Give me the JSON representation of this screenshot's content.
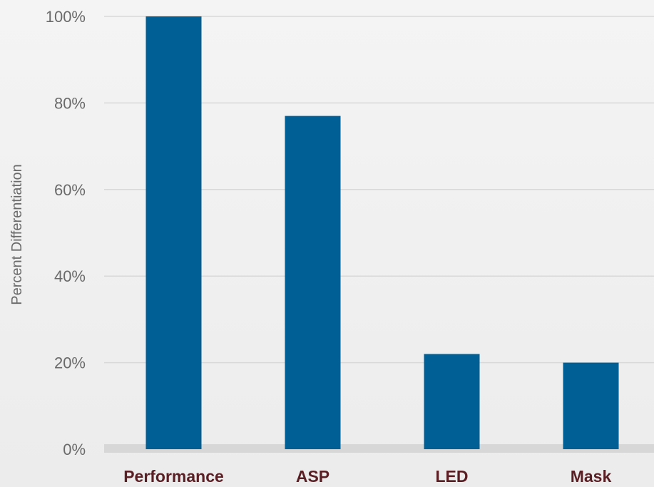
{
  "chart_data": {
    "type": "bar",
    "categories": [
      "Performance",
      "ASP",
      "LED",
      "Mask"
    ],
    "values": [
      100,
      77,
      22,
      20
    ],
    "title": "",
    "xlabel": "",
    "ylabel": "Percent Differentiation",
    "ylim": [
      0,
      100
    ],
    "y_ticks": [
      0,
      20,
      40,
      60,
      80,
      100
    ],
    "y_tick_labels": [
      "0%",
      "20%",
      "40%",
      "60%",
      "80%",
      "100%"
    ],
    "grid": true,
    "legend": "none",
    "bar_color": "#005f95",
    "label_color": "#5a1f24"
  }
}
